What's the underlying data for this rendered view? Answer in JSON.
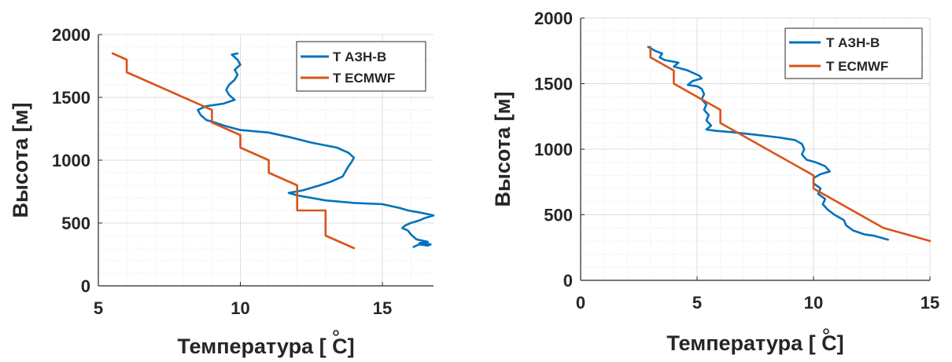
{
  "chart_data": [
    {
      "type": "line",
      "xlabel": "Температура [ C]",
      "ylabel": "Высота [м]",
      "xlim": [
        5,
        16.8
      ],
      "ylim": [
        0,
        2000
      ],
      "xticks": [
        5,
        10,
        15
      ],
      "yticks": [
        0,
        500,
        1000,
        1500,
        2000
      ],
      "grid": true,
      "minor_grid": true,
      "legend_position": "top-right",
      "series": [
        {
          "name": "T АЗН-В",
          "color": "#0072BD",
          "points": [
            [
              16.1,
              310
            ],
            [
              16.3,
              330
            ],
            [
              16.6,
              320
            ],
            [
              16.7,
              330
            ],
            [
              16.3,
              340
            ],
            [
              16.6,
              350
            ],
            [
              16.2,
              370
            ],
            [
              16.0,
              410
            ],
            [
              15.9,
              440
            ],
            [
              15.7,
              460
            ],
            [
              15.8,
              480
            ],
            [
              16.0,
              500
            ],
            [
              16.3,
              520
            ],
            [
              16.5,
              540
            ],
            [
              16.8,
              560
            ],
            [
              16.4,
              580
            ],
            [
              15.9,
              600
            ],
            [
              15.6,
              620
            ],
            [
              15.0,
              650
            ],
            [
              14.0,
              660
            ],
            [
              13.0,
              680
            ],
            [
              12.5,
              700
            ],
            [
              12.0,
              720
            ],
            [
              11.7,
              740
            ],
            [
              12.2,
              760
            ],
            [
              12.8,
              800
            ],
            [
              13.2,
              830
            ],
            [
              13.6,
              870
            ],
            [
              13.7,
              910
            ],
            [
              13.8,
              950
            ],
            [
              13.9,
              980
            ],
            [
              14.0,
              1020
            ],
            [
              13.8,
              1060
            ],
            [
              13.4,
              1100
            ],
            [
              12.5,
              1140
            ],
            [
              11.8,
              1180
            ],
            [
              11.0,
              1220
            ],
            [
              10.0,
              1240
            ],
            [
              9.5,
              1270
            ],
            [
              9.1,
              1300
            ],
            [
              8.8,
              1320
            ],
            [
              8.6,
              1360
            ],
            [
              8.5,
              1400
            ],
            [
              8.8,
              1430
            ],
            [
              9.4,
              1450
            ],
            [
              9.8,
              1480
            ],
            [
              9.6,
              1520
            ],
            [
              9.5,
              1560
            ],
            [
              9.6,
              1600
            ],
            [
              9.8,
              1640
            ],
            [
              9.9,
              1680
            ],
            [
              9.8,
              1720
            ],
            [
              10.0,
              1760
            ],
            [
              9.9,
              1800
            ],
            [
              9.7,
              1840
            ],
            [
              9.9,
              1850
            ]
          ]
        },
        {
          "name": "T ECMWF",
          "color": "#D95319",
          "points": [
            [
              14,
              300
            ],
            [
              13,
              400
            ],
            [
              13,
              600
            ],
            [
              12,
              600
            ],
            [
              12,
              800
            ],
            [
              11,
              900
            ],
            [
              11,
              1000
            ],
            [
              10,
              1100
            ],
            [
              10,
              1200
            ],
            [
              9,
              1300
            ],
            [
              9,
              1400
            ],
            [
              6,
              1700
            ],
            [
              6,
              1800
            ],
            [
              5.5,
              1850
            ]
          ]
        }
      ]
    },
    {
      "type": "line",
      "xlabel": "Температура [ C]",
      "ylabel": "Высота [м]",
      "xlim": [
        0,
        15
      ],
      "ylim": [
        0,
        2000
      ],
      "xticks": [
        0,
        5,
        10,
        15
      ],
      "yticks": [
        0,
        500,
        1000,
        1500,
        2000
      ],
      "grid": true,
      "minor_grid": true,
      "legend_position": "top-right",
      "series": [
        {
          "name": "T АЗН-В",
          "color": "#0072BD",
          "points": [
            [
              13.2,
              310
            ],
            [
              12.8,
              330
            ],
            [
              12.6,
              340
            ],
            [
              12.2,
              350
            ],
            [
              11.7,
              380
            ],
            [
              11.4,
              420
            ],
            [
              11.3,
              460
            ],
            [
              10.9,
              500
            ],
            [
              10.6,
              540
            ],
            [
              10.4,
              580
            ],
            [
              10.5,
              620
            ],
            [
              10.2,
              660
            ],
            [
              10.3,
              700
            ],
            [
              10.0,
              740
            ],
            [
              10.0,
              780
            ],
            [
              10.3,
              810
            ],
            [
              10.7,
              830
            ],
            [
              10.5,
              870
            ],
            [
              10.1,
              900
            ],
            [
              9.7,
              920
            ],
            [
              9.5,
              960
            ],
            [
              9.6,
              1000
            ],
            [
              9.5,
              1040
            ],
            [
              9.2,
              1070
            ],
            [
              8.5,
              1090
            ],
            [
              7.5,
              1110
            ],
            [
              6.5,
              1130
            ],
            [
              5.8,
              1140
            ],
            [
              5.4,
              1150
            ],
            [
              5.6,
              1180
            ],
            [
              5.4,
              1220
            ],
            [
              5.5,
              1260
            ],
            [
              5.3,
              1300
            ],
            [
              5.4,
              1340
            ],
            [
              5.2,
              1380
            ],
            [
              5.3,
              1420
            ],
            [
              5.2,
              1460
            ],
            [
              5.0,
              1480
            ],
            [
              4.6,
              1490
            ],
            [
              4.8,
              1520
            ],
            [
              5.2,
              1540
            ],
            [
              5.1,
              1560
            ],
            [
              4.6,
              1600
            ],
            [
              4.0,
              1630
            ],
            [
              4.2,
              1660
            ],
            [
              3.6,
              1680
            ],
            [
              3.4,
              1700
            ],
            [
              3.5,
              1730
            ],
            [
              3.2,
              1750
            ],
            [
              2.9,
              1780
            ]
          ]
        },
        {
          "name": "T ECMWF",
          "color": "#D95319",
          "points": [
            [
              15,
              300
            ],
            [
              13,
              400
            ],
            [
              10,
              700
            ],
            [
              10,
              800
            ],
            [
              6,
              1200
            ],
            [
              6,
              1300
            ],
            [
              4,
              1500
            ],
            [
              4,
              1600
            ],
            [
              3,
              1700
            ],
            [
              3,
              1780
            ]
          ]
        }
      ]
    }
  ]
}
